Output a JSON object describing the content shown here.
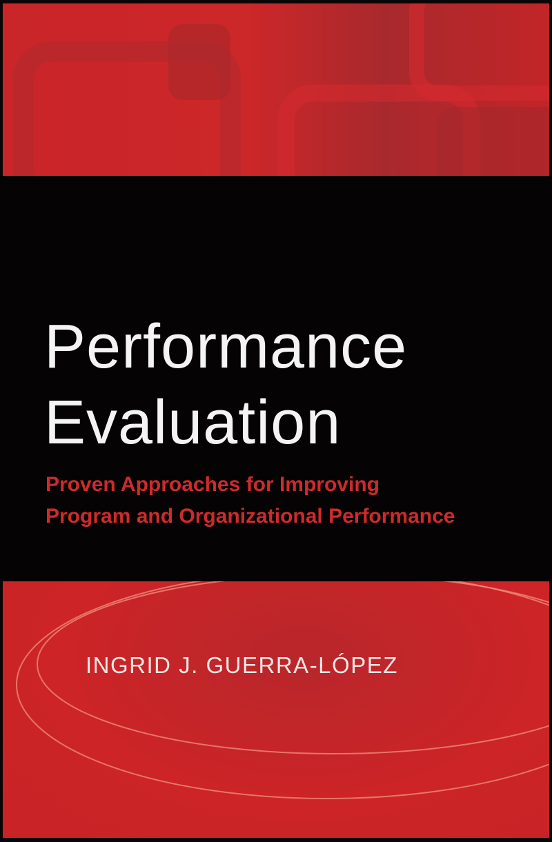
{
  "cover": {
    "title_line1": "Performance",
    "title_line2": "Evaluation",
    "subtitle_line1": "Proven Approaches for Improving",
    "subtitle_line2": "Program and Organizational Performance",
    "author": "INGRID J. GUERRA-LÓPEZ"
  },
  "colors": {
    "red": "#cc2729",
    "black": "#050303",
    "subtitle": "#cf2a2c",
    "title": "#f4f4f4"
  }
}
